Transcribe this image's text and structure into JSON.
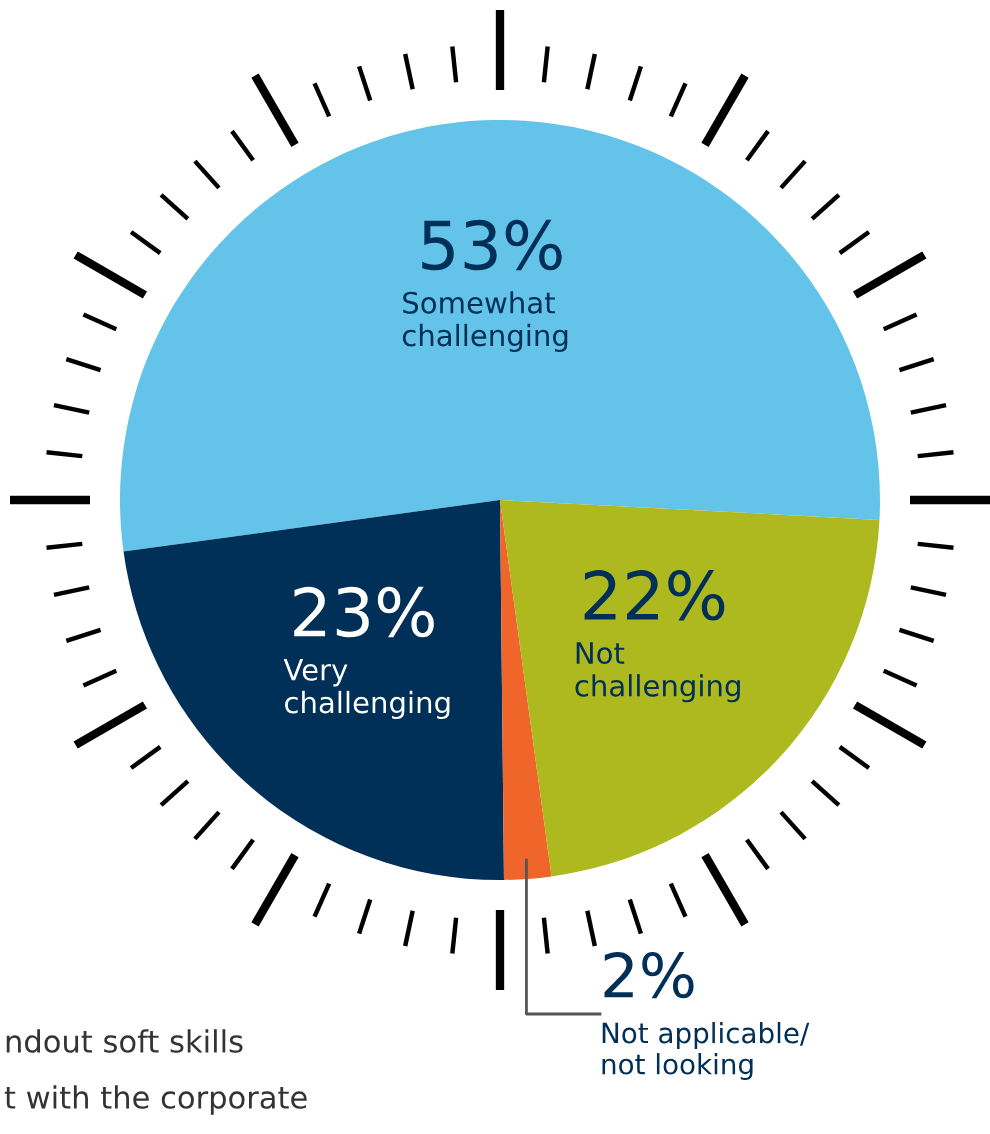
{
  "chart_data": {
    "type": "pie",
    "categories": [
      "Somewhat\nchallenging",
      "Very\nchallenging",
      "Not applicable/\nnot looking",
      "Not\nchallenging"
    ],
    "values": [
      53,
      23,
      2,
      22
    ],
    "value_labels": [
      "53%",
      "23%",
      "2%",
      "22%"
    ],
    "colors": [
      "#63c3e8",
      "#003057",
      "#f0652a",
      "#adb91e"
    ],
    "annotations": [
      "ndout soft skills",
      "t with the corporate"
    ],
    "legend": false
  }
}
